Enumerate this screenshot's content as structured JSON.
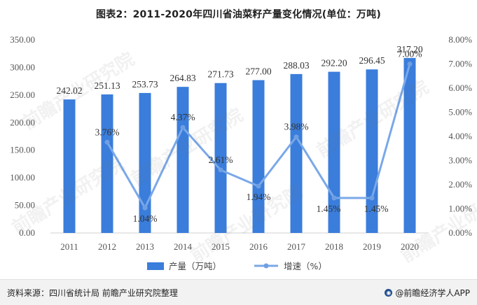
{
  "title": "图表2：2011-2020年四川省油菜籽产量变化情况(单位：万吨)",
  "chart_data": {
    "type": "bar+line",
    "title": "图表2：2011-2020年四川省油菜籽产量变化情况(单位：万吨)",
    "categories": [
      "2011",
      "2012",
      "2013",
      "2014",
      "2015",
      "2016",
      "2017",
      "2018",
      "2019",
      "2020"
    ],
    "series": [
      {
        "name": "产量（万吨）",
        "kind": "bar",
        "axis": "left",
        "values": [
          242.02,
          251.13,
          253.73,
          264.83,
          271.73,
          277.0,
          288.03,
          292.2,
          296.45,
          317.2
        ],
        "labels": [
          "242.02",
          "251.13",
          "253.73",
          "264.83",
          "271.73",
          "277.00",
          "288.03",
          "292.20",
          "296.45",
          "317.20"
        ]
      },
      {
        "name": "增速（%）",
        "kind": "line",
        "axis": "right",
        "x": [
          "2012",
          "2013",
          "2014",
          "2015",
          "2016",
          "2017",
          "2018",
          "2019",
          "2020"
        ],
        "values": [
          3.76,
          1.04,
          4.37,
          2.61,
          1.94,
          3.98,
          1.45,
          1.45,
          7.0
        ],
        "labels": [
          "3.76%",
          "1.04%",
          "4.37%",
          "2.61%",
          "1.94%",
          "3.98%",
          "1.45%",
          "1.45%",
          "7.00%"
        ]
      }
    ],
    "y_left": {
      "ylim": [
        0,
        350
      ],
      "ticks": [
        "0.00",
        "50.00",
        "100.00",
        "150.00",
        "200.00",
        "250.00",
        "300.00",
        "350.00"
      ]
    },
    "y_right": {
      "ylim": [
        0,
        8
      ],
      "ticks": [
        "0.00%",
        "1.00%",
        "2.00%",
        "3.00%",
        "4.00%",
        "5.00%",
        "6.00%",
        "7.00%",
        "8.00%"
      ]
    },
    "legend": [
      "产量（万吨）",
      "增速（%）"
    ],
    "legend_position": "bottom",
    "colors": {
      "bar": "#3a7ddb",
      "line": "#7aa8e8",
      "marker": "#6f9fe3"
    }
  },
  "footer": {
    "source": "资料来源：四川省统计局 前瞻产业研究院整理",
    "brand": "@前瞻经济学人APP"
  },
  "watermark": "前瞻产业研究院"
}
